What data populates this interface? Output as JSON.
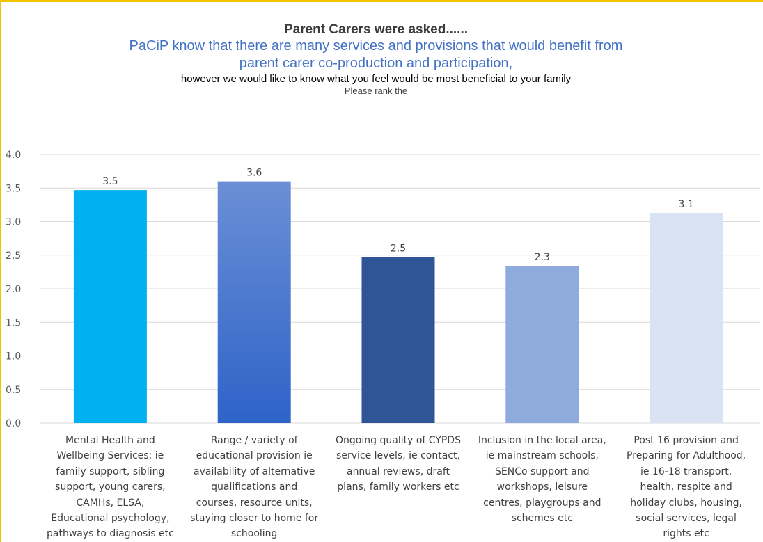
{
  "colors": {
    "frame_border": "#f2c500",
    "gridline": "#d9d9d9",
    "axis_text": "#595959",
    "title_dark": "#3b3b3b",
    "title_blue": "#4472c4"
  },
  "chart_data": {
    "type": "bar",
    "title": "Parent Carers were asked......",
    "subtitle_lines": [
      "PaCiP know that there are many services and provisions that would benefit from",
      "parent carer co-production and participation,"
    ],
    "question": "however we would like to know what you feel would be most beneficial to your family",
    "instruction": "Please rank the",
    "ylim": [
      0,
      4
    ],
    "yticks": [
      "0.0",
      "0.5",
      "1.0",
      "1.5",
      "2.0",
      "2.5",
      "3.0",
      "3.5",
      "4.0"
    ],
    "grid": true,
    "categories": [
      "Mental Health and Wellbeing Services; ie family support, sibling support, young carers, CAMHs, ELSA, Educational psychology, pathways to diagnosis etc",
      "Range / variety of educational provision ie availability of alternative qualifications and courses, resource units, staying closer to home for schooling",
      "Ongoing quality of CYPDS service levels, ie contact, annual reviews, draft plans, family workers etc",
      "Inclusion in the local area, ie mainstream schools, SENCo support and workshops, leisure centres, playgroups and schemes etc",
      "Post 16 provision and Preparing for Adulthood, ie 16-18 transport, health, respite and holiday clubs, housing, social services, legal rights etc"
    ],
    "category_lines": [
      [
        "Mental Health and",
        "Wellbeing Services; ie",
        "family support, sibling",
        "support, young carers,",
        "CAMHs, ELSA,",
        "Educational psychology,",
        "pathways to diagnosis etc"
      ],
      [
        "Range / variety of",
        "educational provision ie",
        "availability of alternative",
        "qualifications and",
        "courses, resource units,",
        "staying closer to home for",
        "schooling"
      ],
      [
        "Ongoing quality of CYPDS",
        "service levels, ie contact,",
        "annual reviews, draft",
        "plans, family workers etc"
      ],
      [
        "Inclusion in the local area,",
        "ie mainstream schools,",
        "SENCo support and",
        "workshops, leisure",
        "centres, playgroups and",
        "schemes etc"
      ],
      [
        "Post 16 provision and",
        "Preparing for Adulthood,",
        "ie 16-18 transport,",
        "health, respite and",
        "holiday clubs, housing,",
        "social services, legal",
        "rights etc"
      ]
    ],
    "values": [
      3.47,
      3.6,
      2.47,
      2.34,
      3.13
    ],
    "data_labels": [
      "3.5",
      "3.6",
      "2.5",
      "2.3",
      "3.1"
    ],
    "bar_colors": [
      "#00b0f0",
      "#4472c4",
      "#2f5597",
      "#8faadc",
      "#dae3f3"
    ],
    "bar_gradient_top": [
      "#00b0f0",
      "#6b8fd6",
      "#2f5597",
      "#8faadc",
      "#dae3f3"
    ],
    "bar_gradient_bottom": [
      "#00b0f0",
      "#2e63c8",
      "#2f5597",
      "#8faadc",
      "#dae3f3"
    ]
  }
}
